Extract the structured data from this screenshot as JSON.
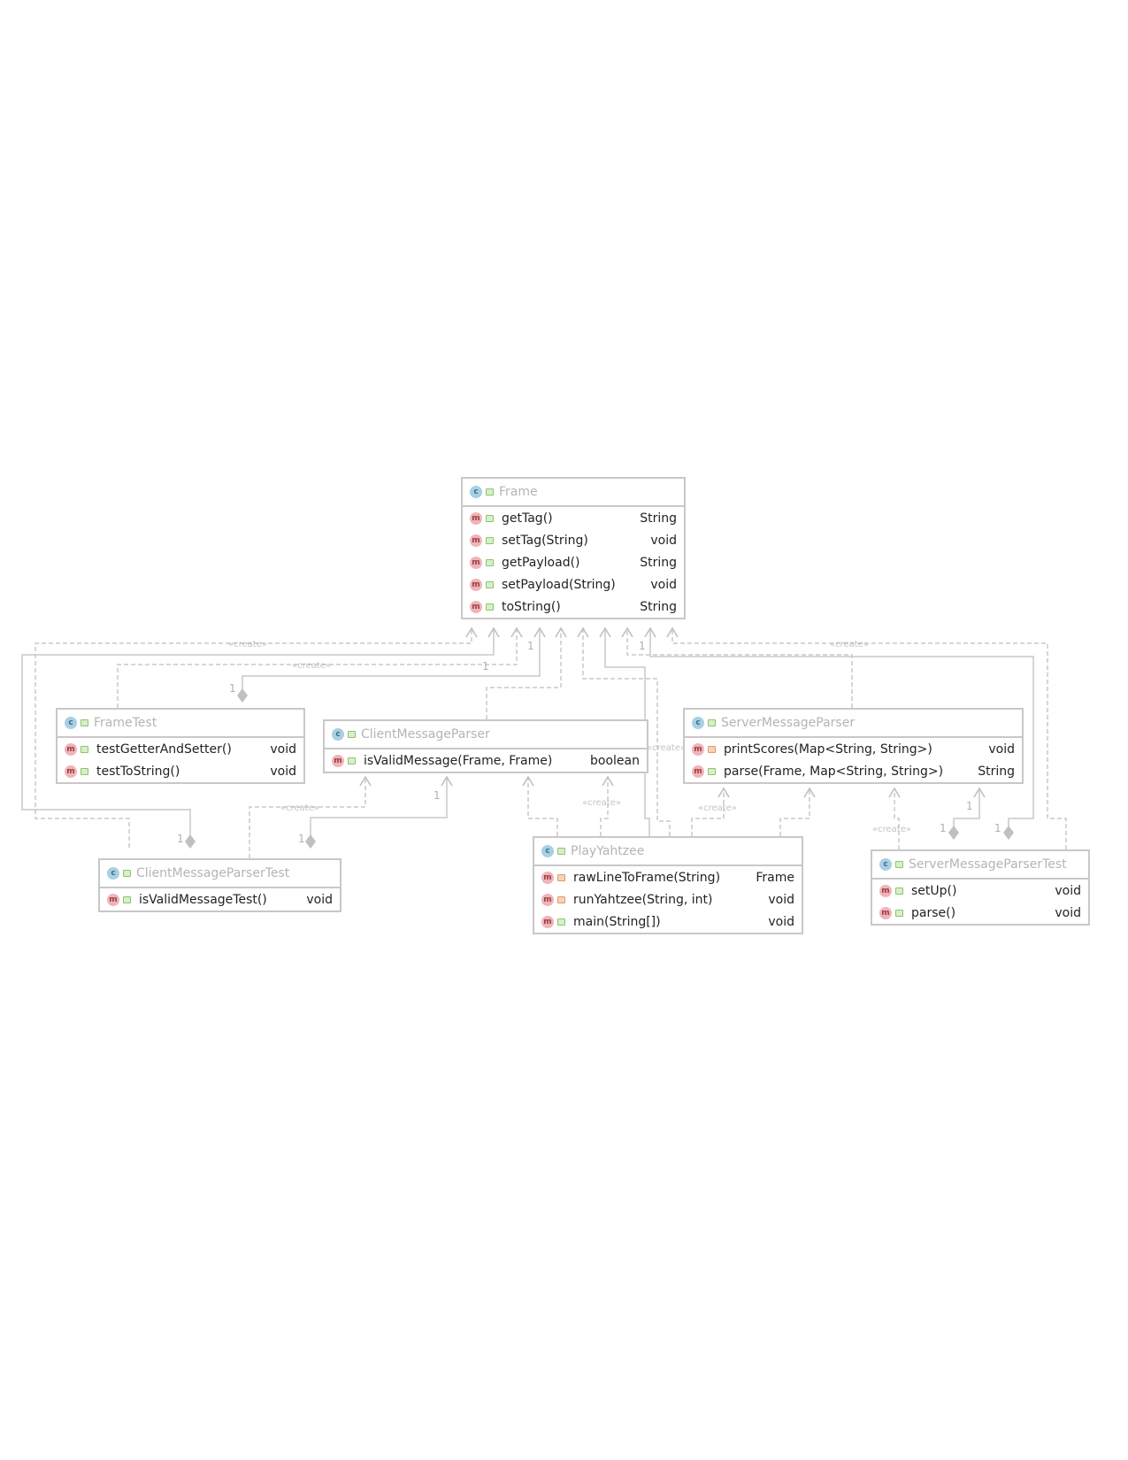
{
  "classes": {
    "frame": {
      "name": "Frame",
      "methods": [
        {
          "sig": "getTag()",
          "ret": "String"
        },
        {
          "sig": "setTag(String)",
          "ret": "void"
        },
        {
          "sig": "getPayload()",
          "ret": "String"
        },
        {
          "sig": "setPayload(String)",
          "ret": "void"
        },
        {
          "sig": "toString()",
          "ret": "String"
        }
      ]
    },
    "frame_test": {
      "name": "FrameTest",
      "methods": [
        {
          "sig": "testGetterAndSetter()",
          "ret": "void"
        },
        {
          "sig": "testToString()",
          "ret": "void"
        }
      ]
    },
    "client_parser": {
      "name": "ClientMessageParser",
      "methods": [
        {
          "sig": "isValidMessage(Frame, Frame)",
          "ret": "boolean"
        }
      ]
    },
    "server_parser": {
      "name": "ServerMessageParser",
      "methods": [
        {
          "sig": "printScores(Map<String, String>)",
          "ret": "void"
        },
        {
          "sig": "parse(Frame, Map<String, String>)",
          "ret": "String"
        }
      ]
    },
    "client_test": {
      "name": "ClientMessageParserTest",
      "methods": [
        {
          "sig": "isValidMessageTest()",
          "ret": "void"
        }
      ]
    },
    "play_yahtzee": {
      "name": "PlayYahtzee",
      "methods": [
        {
          "sig": "rawLineToFrame(String)",
          "ret": "Frame"
        },
        {
          "sig": "runYahtzee(String, int)",
          "ret": "void"
        },
        {
          "sig": "main(String[])",
          "ret": "void"
        }
      ]
    },
    "server_test": {
      "name": "ServerMessageParserTest",
      "methods": [
        {
          "sig": "setUp()",
          "ret": "void"
        },
        {
          "sig": "parse()",
          "ret": "void"
        }
      ]
    }
  },
  "labels": {
    "create": "«create»",
    "one": "1"
  }
}
